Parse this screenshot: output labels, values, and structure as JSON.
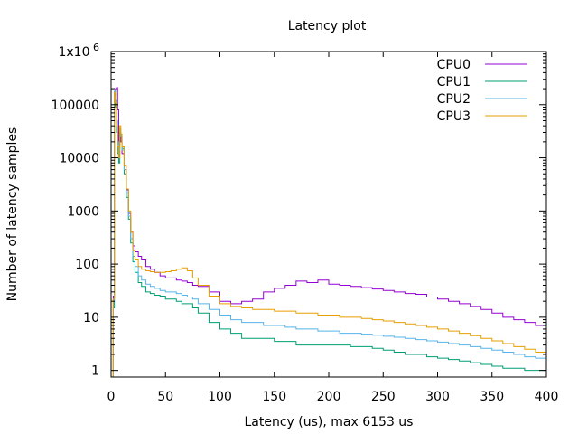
{
  "chart_data": {
    "type": "line",
    "title": "Latency plot",
    "xlabel": "Latency (us), max 6153 us",
    "ylabel": "Number of latency samples",
    "xlim": [
      0,
      400
    ],
    "ylim": [
      0.75,
      1000000
    ],
    "yscale": "log",
    "grid": false,
    "legend": "top-right",
    "x_ticks": [
      "0",
      "50",
      "100",
      "150",
      "200",
      "250",
      "300",
      "350",
      "400"
    ],
    "y_ticks": [
      {
        "value": 1000000,
        "label": "1x10",
        "exp": "6"
      },
      {
        "value": 100000,
        "label": "100000"
      },
      {
        "value": 10000,
        "label": "10000"
      },
      {
        "value": 1000,
        "label": "1000"
      },
      {
        "value": 100,
        "label": "100"
      },
      {
        "value": 10,
        "label": "10"
      },
      {
        "value": 1,
        "label": "1"
      }
    ],
    "series": [
      {
        "name": "CPU0",
        "color": "#9400d3",
        "points": [
          [
            0,
            0.75
          ],
          [
            2,
            25
          ],
          [
            3,
            150000
          ],
          [
            4,
            200000
          ],
          [
            5,
            210000
          ],
          [
            6,
            80000
          ],
          [
            7,
            18000
          ],
          [
            8,
            28000
          ],
          [
            9,
            20000
          ],
          [
            10,
            12000
          ],
          [
            12,
            6000
          ],
          [
            14,
            2500
          ],
          [
            16,
            900
          ],
          [
            18,
            400
          ],
          [
            20,
            220
          ],
          [
            22,
            170
          ],
          [
            25,
            140
          ],
          [
            28,
            120
          ],
          [
            32,
            90
          ],
          [
            36,
            80
          ],
          [
            40,
            70
          ],
          [
            45,
            60
          ],
          [
            50,
            55
          ],
          [
            55,
            55
          ],
          [
            60,
            50
          ],
          [
            65,
            48
          ],
          [
            70,
            45
          ],
          [
            75,
            40
          ],
          [
            80,
            38
          ],
          [
            90,
            30
          ],
          [
            100,
            20
          ],
          [
            110,
            18
          ],
          [
            120,
            20
          ],
          [
            130,
            22
          ],
          [
            140,
            30
          ],
          [
            150,
            35
          ],
          [
            160,
            40
          ],
          [
            170,
            48
          ],
          [
            180,
            45
          ],
          [
            190,
            50
          ],
          [
            200,
            42
          ],
          [
            210,
            40
          ],
          [
            220,
            38
          ],
          [
            230,
            36
          ],
          [
            240,
            34
          ],
          [
            250,
            32
          ],
          [
            260,
            30
          ],
          [
            270,
            28
          ],
          [
            280,
            27
          ],
          [
            290,
            24
          ],
          [
            300,
            22
          ],
          [
            310,
            20
          ],
          [
            320,
            18
          ],
          [
            330,
            16
          ],
          [
            340,
            14
          ],
          [
            350,
            12
          ],
          [
            360,
            10
          ],
          [
            370,
            9
          ],
          [
            380,
            8
          ],
          [
            390,
            7
          ],
          [
            400,
            6
          ]
        ]
      },
      {
        "name": "CPU1",
        "color": "#009e73",
        "points": [
          [
            0,
            0.75
          ],
          [
            2,
            15
          ],
          [
            3,
            120000
          ],
          [
            4,
            90000
          ],
          [
            5,
            30000
          ],
          [
            6,
            12000
          ],
          [
            7,
            8000
          ],
          [
            8,
            30000
          ],
          [
            9,
            25000
          ],
          [
            10,
            15000
          ],
          [
            12,
            5000
          ],
          [
            14,
            1800
          ],
          [
            16,
            700
          ],
          [
            18,
            250
          ],
          [
            20,
            110
          ],
          [
            22,
            70
          ],
          [
            25,
            45
          ],
          [
            28,
            38
          ],
          [
            32,
            30
          ],
          [
            36,
            28
          ],
          [
            40,
            26
          ],
          [
            45,
            25
          ],
          [
            50,
            22
          ],
          [
            55,
            22
          ],
          [
            60,
            20
          ],
          [
            65,
            18
          ],
          [
            70,
            18
          ],
          [
            75,
            15
          ],
          [
            80,
            12
          ],
          [
            90,
            8
          ],
          [
            100,
            6
          ],
          [
            110,
            5
          ],
          [
            120,
            4
          ],
          [
            130,
            4
          ],
          [
            140,
            4
          ],
          [
            150,
            3.5
          ],
          [
            160,
            3.5
          ],
          [
            170,
            3
          ],
          [
            180,
            3
          ],
          [
            190,
            3
          ],
          [
            200,
            3
          ],
          [
            210,
            3
          ],
          [
            220,
            2.8
          ],
          [
            230,
            2.8
          ],
          [
            240,
            2.6
          ],
          [
            250,
            2.4
          ],
          [
            260,
            2.2
          ],
          [
            270,
            2
          ],
          [
            280,
            2
          ],
          [
            290,
            1.8
          ],
          [
            300,
            1.7
          ],
          [
            310,
            1.6
          ],
          [
            320,
            1.5
          ],
          [
            330,
            1.4
          ],
          [
            340,
            1.3
          ],
          [
            350,
            1.2
          ],
          [
            360,
            1.1
          ],
          [
            370,
            1.1
          ],
          [
            380,
            1
          ],
          [
            390,
            1
          ],
          [
            400,
            1
          ]
        ]
      },
      {
        "name": "CPU2",
        "color": "#56b4e9",
        "points": [
          [
            0,
            0.75
          ],
          [
            2,
            20
          ],
          [
            3,
            180000
          ],
          [
            4,
            120000
          ],
          [
            5,
            50000
          ],
          [
            6,
            20000
          ],
          [
            7,
            14000
          ],
          [
            8,
            35000
          ],
          [
            9,
            25000
          ],
          [
            10,
            14000
          ],
          [
            12,
            6000
          ],
          [
            14,
            2200
          ],
          [
            16,
            800
          ],
          [
            18,
            300
          ],
          [
            20,
            140
          ],
          [
            22,
            90
          ],
          [
            25,
            60
          ],
          [
            28,
            50
          ],
          [
            32,
            42
          ],
          [
            36,
            38
          ],
          [
            40,
            35
          ],
          [
            45,
            32
          ],
          [
            50,
            30
          ],
          [
            55,
            30
          ],
          [
            60,
            28
          ],
          [
            65,
            26
          ],
          [
            70,
            24
          ],
          [
            75,
            22
          ],
          [
            80,
            18
          ],
          [
            90,
            14
          ],
          [
            100,
            11
          ],
          [
            110,
            9
          ],
          [
            120,
            8
          ],
          [
            130,
            8
          ],
          [
            140,
            7
          ],
          [
            150,
            7
          ],
          [
            160,
            6.5
          ],
          [
            170,
            6
          ],
          [
            180,
            6
          ],
          [
            190,
            5.5
          ],
          [
            200,
            5.5
          ],
          [
            210,
            5
          ],
          [
            220,
            5
          ],
          [
            230,
            4.8
          ],
          [
            240,
            4.6
          ],
          [
            250,
            4.4
          ],
          [
            260,
            4.2
          ],
          [
            270,
            4
          ],
          [
            280,
            3.8
          ],
          [
            290,
            3.6
          ],
          [
            300,
            3.4
          ],
          [
            310,
            3.2
          ],
          [
            320,
            3
          ],
          [
            330,
            2.8
          ],
          [
            340,
            2.6
          ],
          [
            350,
            2.4
          ],
          [
            360,
            2.2
          ],
          [
            370,
            2
          ],
          [
            380,
            1.8
          ],
          [
            390,
            1.7
          ],
          [
            400,
            1.6
          ]
        ]
      },
      {
        "name": "CPU3",
        "color": "#e69f00",
        "points": [
          [
            0,
            0.75
          ],
          [
            2,
            22
          ],
          [
            3,
            170000
          ],
          [
            4,
            110000
          ],
          [
            5,
            40000
          ],
          [
            6,
            16000
          ],
          [
            7,
            10000
          ],
          [
            8,
            40000
          ],
          [
            9,
            28000
          ],
          [
            10,
            16000
          ],
          [
            12,
            7000
          ],
          [
            14,
            2600
          ],
          [
            16,
            1000
          ],
          [
            18,
            400
          ],
          [
            20,
            180
          ],
          [
            22,
            120
          ],
          [
            25,
            90
          ],
          [
            28,
            80
          ],
          [
            32,
            75
          ],
          [
            36,
            72
          ],
          [
            40,
            70
          ],
          [
            45,
            70
          ],
          [
            50,
            72
          ],
          [
            55,
            75
          ],
          [
            60,
            80
          ],
          [
            65,
            85
          ],
          [
            70,
            75
          ],
          [
            75,
            55
          ],
          [
            80,
            40
          ],
          [
            90,
            25
          ],
          [
            100,
            18
          ],
          [
            110,
            16
          ],
          [
            120,
            15
          ],
          [
            130,
            14
          ],
          [
            140,
            14
          ],
          [
            150,
            13
          ],
          [
            160,
            13
          ],
          [
            170,
            12
          ],
          [
            180,
            12
          ],
          [
            190,
            11
          ],
          [
            200,
            11
          ],
          [
            210,
            10
          ],
          [
            220,
            10
          ],
          [
            230,
            9.5
          ],
          [
            240,
            9
          ],
          [
            250,
            8.5
          ],
          [
            260,
            8
          ],
          [
            270,
            7.5
          ],
          [
            280,
            7
          ],
          [
            290,
            6.5
          ],
          [
            300,
            6
          ],
          [
            310,
            5.5
          ],
          [
            320,
            5
          ],
          [
            330,
            4.5
          ],
          [
            340,
            4
          ],
          [
            350,
            3.6
          ],
          [
            360,
            3.2
          ],
          [
            370,
            2.8
          ],
          [
            380,
            2.5
          ],
          [
            390,
            2.2
          ],
          [
            400,
            2
          ]
        ]
      }
    ]
  }
}
